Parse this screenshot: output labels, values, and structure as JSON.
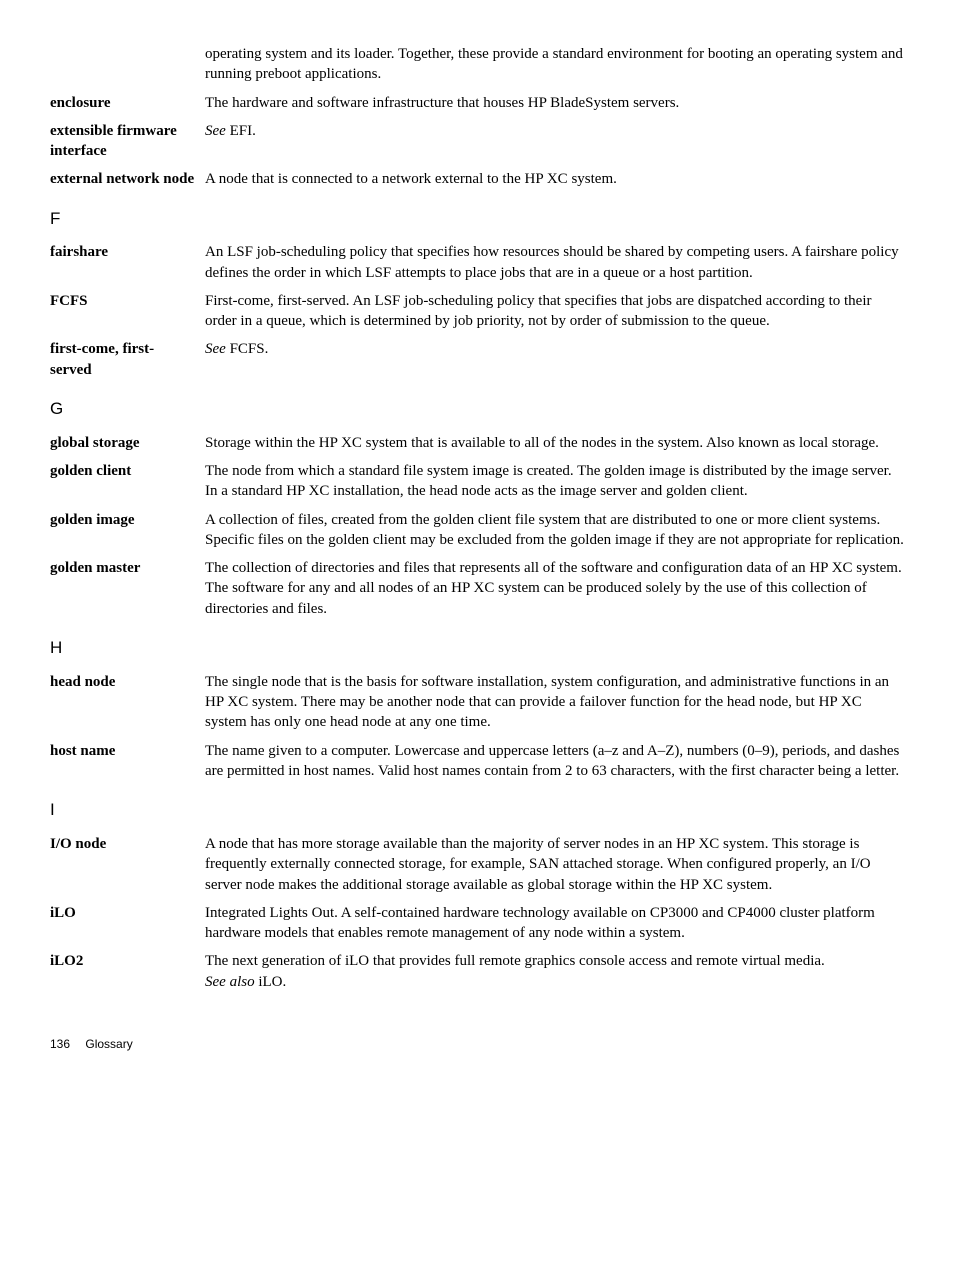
{
  "entries": [
    {
      "term": "",
      "def": "operating system and its loader. Together, these provide a standard environment for booting an operating system and running preboot applications."
    },
    {
      "term": "enclosure",
      "def": "The hardware and software infrastructure that houses HP BladeSystem servers."
    },
    {
      "term": "extensible firmware interface",
      "see": "See",
      "see_target": "EFI."
    },
    {
      "term": "external network node",
      "def": "A node that is connected to a network external to the HP XC system."
    },
    {
      "letter": "F"
    },
    {
      "term": "fairshare",
      "def": "An LSF job-scheduling policy that specifies how resources should be shared by competing users. A fairshare policy defines the order in which LSF attempts to place jobs that are in a queue or a host partition."
    },
    {
      "term": "FCFS",
      "def": "First-come, first-served. An LSF job-scheduling policy that specifies that jobs are dispatched according to their order in a queue, which is determined by job priority, not by order of submission to the queue."
    },
    {
      "term": "first-come, first-served",
      "see": "See",
      "see_target": "FCFS."
    },
    {
      "letter": "G"
    },
    {
      "term": "global storage",
      "def": "Storage within the HP XC system that is available to all of the nodes in the system. Also known as local storage."
    },
    {
      "term": "golden client",
      "def": "The node from which a standard file system image is created. The golden image is distributed by the image server. In a standard HP XC installation, the head node acts as the image server and golden client."
    },
    {
      "term": "golden image",
      "def": "A collection of files, created from the golden client file system that are distributed to one or more client systems. Specific files on the golden client may be excluded from the golden image if they are not appropriate for replication."
    },
    {
      "term": "golden master",
      "def": "The collection of directories and files that represents all of the software and configuration data of an HP XC system. The software for any and all nodes of an HP XC system can be produced solely by the use of this collection of directories and files."
    },
    {
      "letter": "H"
    },
    {
      "term": "head node",
      "def": "The single node that is the basis for software installation, system configuration, and administrative functions in an HP XC system. There may be another node that can provide a failover function for the head node, but HP XC system has only one head node at any one time."
    },
    {
      "term": "host name",
      "def": "The name given to a computer. Lowercase and uppercase letters (a–z and A–Z), numbers (0–9), periods, and dashes are permitted in host names. Valid host names contain from 2 to 63 characters, with the first character being a letter."
    },
    {
      "letter": "I"
    },
    {
      "term": "I/O node",
      "def": "A node that has more storage available than the majority of server nodes in an HP XC system. This storage is frequently externally connected storage, for example, SAN attached storage. When configured properly, an I/O server node makes the additional storage available as global storage within the HP XC system."
    },
    {
      "term": "iLO",
      "def": "Integrated Lights Out. A self-contained hardware technology available on CP3000 and CP4000 cluster platform hardware models that enables remote management of any node within a system."
    },
    {
      "term": "iLO2",
      "def": "The next generation of iLO that provides full remote graphics console access and remote virtual media.",
      "seealso": "See also",
      "seealso_target": "iLO."
    }
  ],
  "footer": {
    "page": "136",
    "section": "Glossary"
  }
}
